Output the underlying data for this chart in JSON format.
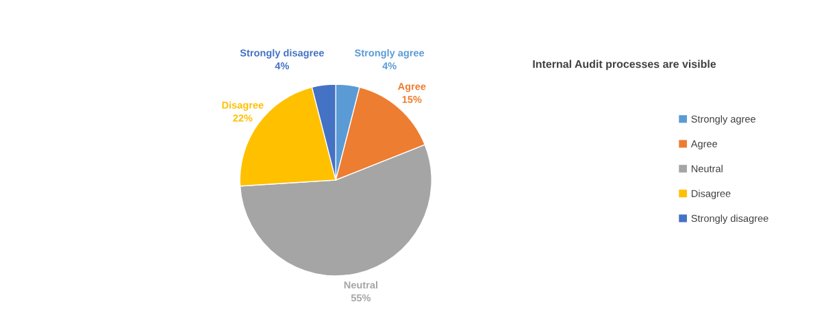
{
  "chart_data": {
    "type": "pie",
    "title": "Internal Audit processes are visible",
    "categories": [
      "Strongly agree",
      "Agree",
      "Neutral",
      "Disagree",
      "Strongly disagree"
    ],
    "values": [
      4,
      15,
      55,
      22,
      4
    ],
    "value_labels": [
      "4%",
      "15%",
      "55%",
      "22%",
      "4%"
    ],
    "colors": [
      "#5b9bd5",
      "#ed7d31",
      "#a5a5a5",
      "#ffc000",
      "#4472c4"
    ],
    "legend": "right"
  }
}
